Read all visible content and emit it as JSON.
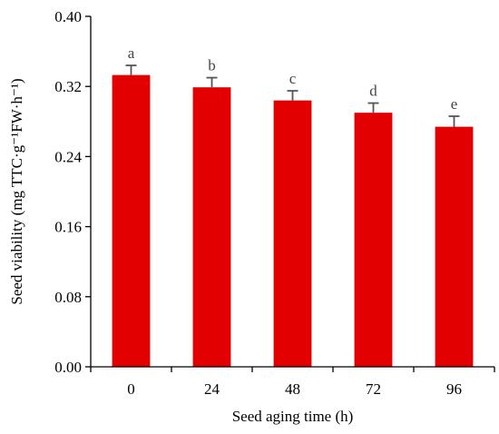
{
  "chart_data": {
    "type": "bar",
    "categories": [
      "0",
      "24",
      "48",
      "72",
      "96"
    ],
    "series": [
      {
        "values": [
          0.333,
          0.319,
          0.304,
          0.29,
          0.274
        ],
        "errors": [
          0.011,
          0.011,
          0.011,
          0.011,
          0.012
        ],
        "significance": [
          "a",
          "b",
          "c",
          "d",
          "e"
        ]
      }
    ],
    "xlabel": "Seed aging time (h)",
    "ylabel": "Seed viability (mg TTC·g⁻¹FW·h⁻¹)",
    "ylim": [
      0,
      0.4
    ],
    "yticks": [
      "0.00",
      "0.08",
      "0.16",
      "0.24",
      "0.32",
      "0.40"
    ],
    "grid": false,
    "bar_color": "#E20000",
    "error_bar_color": "#555555"
  }
}
